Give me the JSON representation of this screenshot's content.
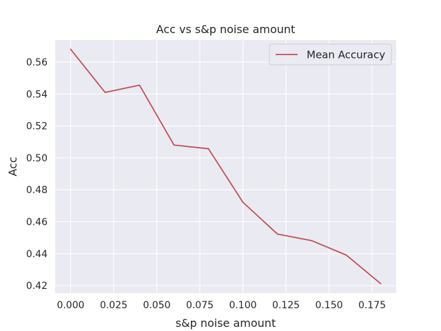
{
  "chart_data": {
    "type": "line",
    "title": "Acc vs s&p noise amount",
    "xlabel": "s&p noise amount",
    "ylabel": "Acc",
    "xlim": [
      -0.009,
      0.189
    ],
    "ylim": [
      0.4153,
      0.5738
    ],
    "x_ticks": [
      0.0,
      0.025,
      0.05,
      0.075,
      0.1,
      0.125,
      0.15,
      0.175
    ],
    "x_tick_labels": [
      "0.000",
      "0.025",
      "0.050",
      "0.075",
      "0.100",
      "0.125",
      "0.150",
      "0.175"
    ],
    "y_ticks": [
      0.42,
      0.44,
      0.46,
      0.48,
      0.5,
      0.52,
      0.54,
      0.56
    ],
    "y_tick_labels": [
      "0.42",
      "0.44",
      "0.46",
      "0.48",
      "0.50",
      "0.52",
      "0.54",
      "0.56"
    ],
    "grid": true,
    "legend_position": "top-right",
    "series": [
      {
        "name": "Mean Accuracy",
        "color": "#c44e52",
        "x": [
          0.0,
          0.02,
          0.04,
          0.06,
          0.08,
          0.1,
          0.12,
          0.14,
          0.16,
          0.18
        ],
        "y": [
          0.568,
          0.541,
          0.5455,
          0.508,
          0.5057,
          0.4722,
          0.4523,
          0.4481,
          0.4391,
          0.4212
        ]
      }
    ]
  },
  "style": {
    "plot_background": "#eaeaf2",
    "grid_color": "#ffffff",
    "text_color": "#262626"
  }
}
